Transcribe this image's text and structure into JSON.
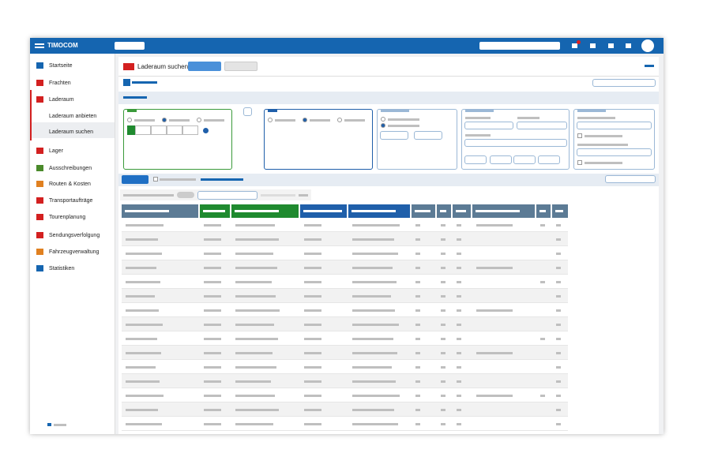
{
  "header": {
    "logo": "TIMOCOM"
  },
  "sidebar": {
    "items": [
      {
        "label": "Startseite"
      },
      {
        "label": "Frachten"
      },
      {
        "label": "Laderaum"
      },
      {
        "label": "Laderaum anbieten"
      },
      {
        "label": "Laderaum suchen"
      },
      {
        "label": "Lager"
      },
      {
        "label": "Ausschreibungen"
      },
      {
        "label": "Routen & Kosten"
      },
      {
        "label": "Transportaufträge"
      },
      {
        "label": "Tourenplanung"
      },
      {
        "label": "Sendungsverfolgung"
      },
      {
        "label": "Fahrzeugverwaltung"
      },
      {
        "label": "Statistiken"
      }
    ]
  },
  "page": {
    "title": "Laderaum suchen"
  }
}
